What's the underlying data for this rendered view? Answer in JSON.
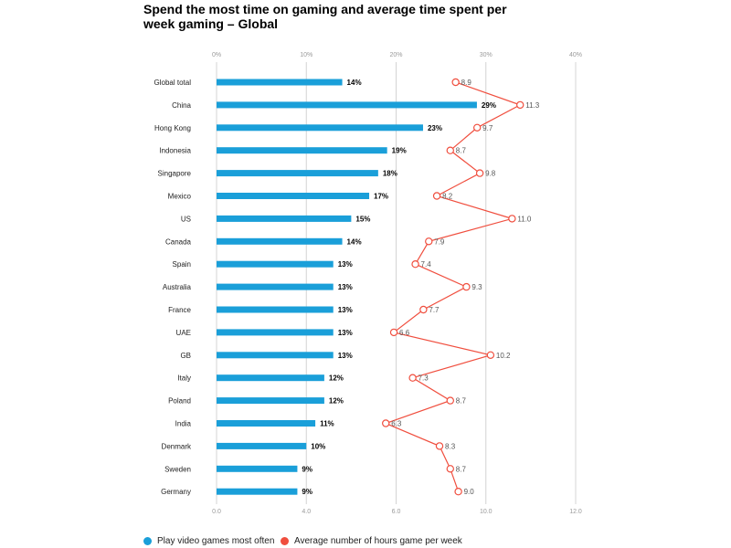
{
  "title": "Spend the most time on gaming and average time spent per week gaming – Global",
  "chart_data": {
    "type": "bar",
    "categories": [
      "Global total",
      "China",
      "Hong Kong",
      "Indonesia",
      "Singapore",
      "Mexico",
      "US",
      "Canada",
      "Spain",
      "Australia",
      "France",
      "UAE",
      "GB",
      "Italy",
      "Poland",
      "India",
      "Denmark",
      "Sweden",
      "Germany"
    ],
    "series": [
      {
        "name": "Play video games most often",
        "type": "bar",
        "values": [
          14,
          29,
          23,
          19,
          18,
          17,
          15,
          14,
          13,
          13,
          13,
          13,
          13,
          12,
          12,
          11,
          10,
          9,
          9
        ],
        "labels": [
          "14%",
          "29%",
          "23%",
          "19%",
          "18%",
          "17%",
          "15%",
          "14%",
          "13%",
          "13%",
          "13%",
          "13%",
          "13%",
          "12%",
          "12%",
          "11%",
          "10%",
          "9%",
          "9%"
        ],
        "axis": "top",
        "color": "#1a9fd9"
      },
      {
        "name": "Average number of hours game per week",
        "type": "line",
        "values": [
          8.9,
          11.3,
          9.7,
          8.7,
          9.8,
          8.2,
          11.0,
          7.9,
          7.4,
          9.3,
          7.7,
          6.6,
          10.2,
          7.3,
          8.7,
          6.3,
          8.3,
          8.7,
          9.0
        ],
        "labels": [
          "8.9",
          "11.3",
          "9.7",
          "8.7",
          "9.8",
          "8.2",
          "11.0",
          "7.9",
          "7.4",
          "9.3",
          "7.7",
          "6.6",
          "10.2",
          "7.3",
          "8.7",
          "6.3",
          "8.3",
          "8.7",
          "9.0"
        ],
        "axis": "bottom",
        "color": "#f04e3e"
      }
    ],
    "top_axis": {
      "ticks": [
        "0%",
        "10%",
        "20%",
        "30%",
        "40%"
      ],
      "range": [
        0,
        40
      ]
    },
    "bottom_axis": {
      "ticks": [
        "0.0",
        "4.0",
        "6.0",
        "10.0",
        "12.0"
      ]
    },
    "legend_position": "bottom-left"
  }
}
